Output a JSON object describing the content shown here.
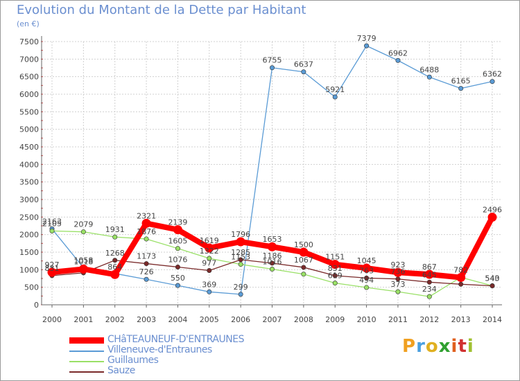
{
  "title": "Evolution du Montant de la Dette par Habitant",
  "unit": "(en €)",
  "logo_text": "Proxiti",
  "chart_data": {
    "type": "line",
    "title": "Evolution du Montant de la Dette par Habitant",
    "ylabel": "(en €)",
    "xlabel": "",
    "ylim": [
      0,
      7500
    ],
    "yticks": [
      0,
      500,
      1000,
      1500,
      2000,
      2500,
      3000,
      3500,
      4000,
      4500,
      5000,
      5500,
      6000,
      6500,
      7000,
      7500
    ],
    "categories": [
      "2000",
      "2001",
      "2002",
      "2003",
      "2004",
      "2005",
      "2006",
      "2007",
      "2008",
      "2009",
      "2010",
      "2011",
      "2012",
      "2013",
      "2014"
    ],
    "grid": true,
    "legend_position": "bottom-left",
    "series": [
      {
        "name": "CHâTEAUNEUF-D'ENTRAUNES",
        "color": "#ff0000",
        "values": [
          927,
          1018,
          864,
          2321,
          2139,
          1619,
          1796,
          1653,
          1500,
          1151,
          1045,
          923,
          867,
          778,
          2496
        ],
        "labels": [
          "927",
          "1018",
          "864",
          "2321",
          "2139",
          "1619",
          "1796",
          "1653",
          "1500",
          "1151",
          "1045",
          "923",
          "867",
          "",
          "2496"
        ]
      },
      {
        "name": "Villeneuve-d'Entraunes",
        "color": "#5a9bd5",
        "values": [
          2163,
          1058,
          892,
          726,
          550,
          369,
          299,
          6755,
          6637,
          5921,
          7379,
          6962,
          6488,
          6165,
          6362
        ],
        "labels": [
          "2163",
          "1058",
          "",
          "726",
          "550",
          "369",
          "299",
          "6755",
          "6637",
          "5921",
          "7379",
          "6962",
          "6488",
          "6165",
          "6362"
        ]
      },
      {
        "name": "Guillaumes",
        "color": "#99e066",
        "values": [
          2105,
          2079,
          1931,
          1876,
          1605,
          1322,
          1153,
          1016,
          873,
          619,
          494,
          373,
          234,
          782,
          543
        ],
        "labels": [
          "2105",
          "2079",
          "1931",
          "1876",
          "1605",
          "1322",
          "1153",
          "1016",
          "",
          "619",
          "494",
          "373",
          "234",
          "782",
          "543"
        ]
      },
      {
        "name": "Sauze",
        "color": "#7a2a2a",
        "values": [
          831,
          910,
          1268,
          1173,
          1076,
          977,
          1285,
          1186,
          1067,
          831,
          763,
          736,
          645,
          586,
          540
        ],
        "labels": [
          "831",
          "",
          "1268",
          "1173",
          "1076",
          "977",
          "1285",
          "1186",
          "1067",
          "831",
          "763",
          "736",
          "645",
          "",
          "540"
        ]
      }
    ]
  }
}
